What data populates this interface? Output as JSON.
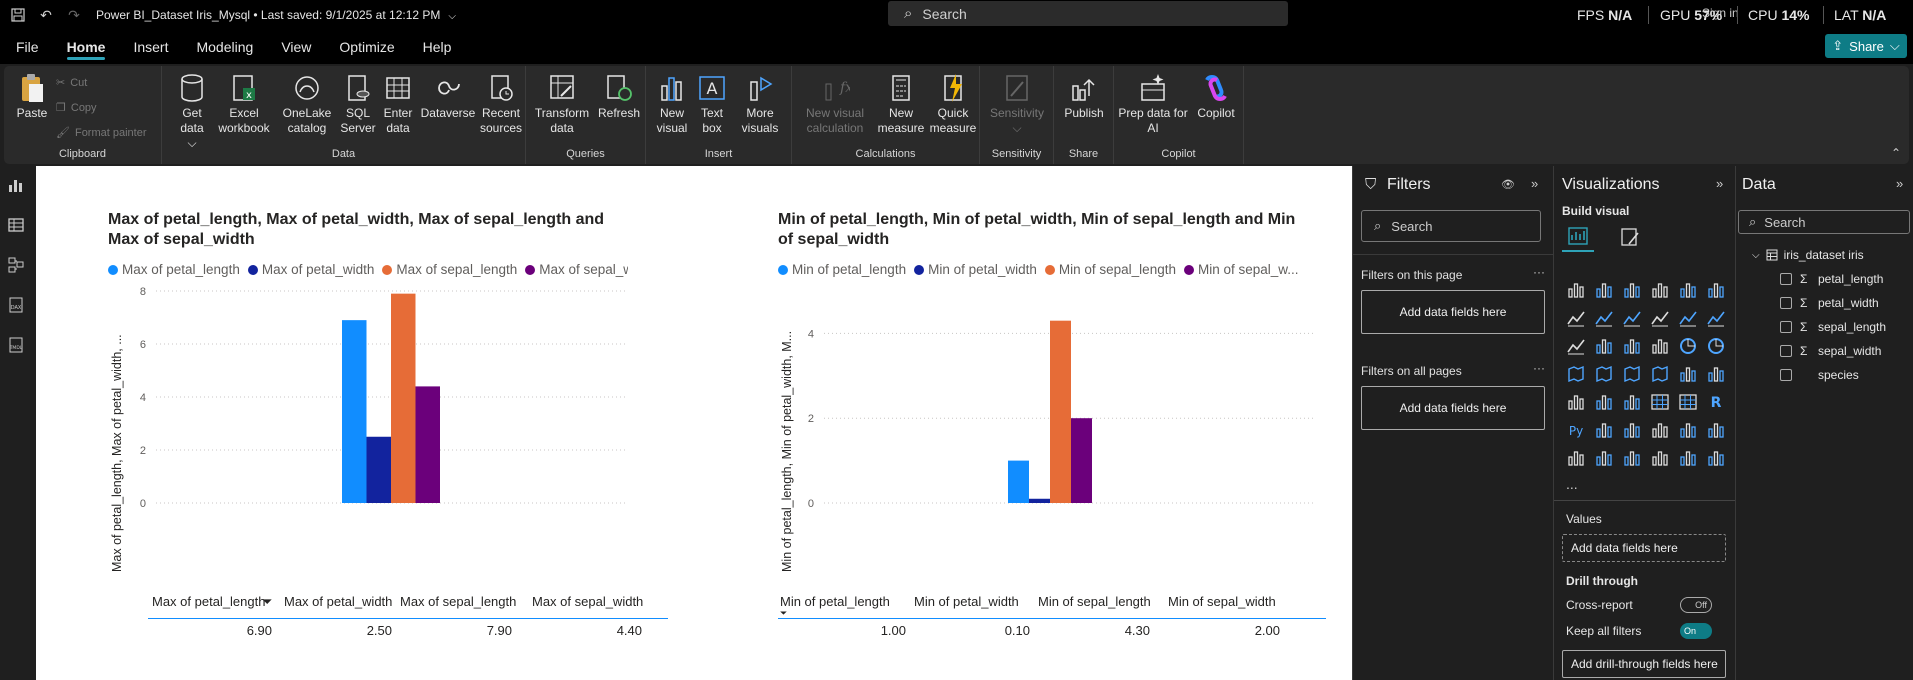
{
  "titlebar": {
    "doc_title": "Power BI_Dataset Iris_Mysql • Last saved: 9/1/2025 at 12:12 PM",
    "search_placeholder": "Search",
    "fps_label": "FPS",
    "fps_value": "N/A",
    "gpu_label": "GPU",
    "gpu_value": "57%",
    "cpu_label": "CPU",
    "cpu_value": "14%",
    "lat_label": "LAT",
    "lat_value": "N/A",
    "signin": "Sign in"
  },
  "menu": {
    "items": [
      "File",
      "Home",
      "Insert",
      "Modeling",
      "View",
      "Optimize",
      "Help"
    ],
    "active": "Home",
    "share": "Share"
  },
  "ribbon": {
    "clipboard": {
      "label": "Clipboard",
      "paste": "Paste",
      "cut": "Cut",
      "copy": "Copy",
      "format_painter": "Format painter"
    },
    "data": {
      "label": "Data",
      "get_data": "Get data",
      "excel": "Excel workbook",
      "onelake": "OneLake catalog",
      "sql": "SQL Server",
      "enter": "Enter data",
      "dataverse": "Dataverse",
      "recent": "Recent sources"
    },
    "queries": {
      "label": "Queries",
      "transform": "Transform data",
      "refresh": "Refresh"
    },
    "insert": {
      "label": "Insert",
      "new_visual": "New visual",
      "text_box": "Text box",
      "more_visuals": "More visuals"
    },
    "calculations": {
      "label": "Calculations",
      "new_visual_calc": "New visual calculation",
      "new_measure": "New measure",
      "quick_measure": "Quick measure"
    },
    "sensitivity": {
      "label": "Sensitivity",
      "sensitivity": "Sensitivity"
    },
    "share": {
      "label": "Share",
      "publish": "Publish"
    },
    "copilot": {
      "label": "Copilot",
      "prep": "Prep data for AI",
      "copilot": "Copilot"
    }
  },
  "colors": {
    "s1": "#118DFF",
    "s2": "#12239E",
    "s3": "#E66C37",
    "s4": "#6B007B",
    "accent": "#0e7c86"
  },
  "chart_data": [
    {
      "type": "bar",
      "title": "Max of petal_length, Max of petal_width, Max of sepal_length and Max of sepal_width",
      "ylabel": "Max of petal_length, Max of petal_width, ...",
      "ylim": [
        0,
        8
      ],
      "yticks": [
        "0",
        "2",
        "4",
        "6",
        "8"
      ],
      "series": [
        {
          "name": "Max of petal_length",
          "values": [
            6.9
          ]
        },
        {
          "name": "Max of petal_width",
          "values": [
            2.5
          ]
        },
        {
          "name": "Max of sepal_length",
          "values": [
            7.9
          ]
        },
        {
          "name": "Max of sepal_width",
          "values": [
            4.4
          ]
        }
      ],
      "table_values": [
        "6.90",
        "2.50",
        "7.90",
        "4.40"
      ]
    },
    {
      "type": "bar",
      "title": "Min of petal_length, Min of petal_width, Min of sepal_length and Min of sepal_width",
      "ylabel": "Min of petal_length, Min of petal_width, M...",
      "ylim": [
        0,
        5
      ],
      "yticks": [
        "0",
        "2",
        "4"
      ],
      "series": [
        {
          "name": "Min of petal_length",
          "values": [
            1.0
          ]
        },
        {
          "name": "Min of petal_width",
          "values": [
            0.1
          ]
        },
        {
          "name": "Min of sepal_length",
          "values": [
            4.3
          ]
        },
        {
          "name": "Min of sepal_width",
          "values": [
            2.0
          ]
        }
      ],
      "legend_last": "Min of sepal_w...",
      "table_values": [
        "1.00",
        "0.10",
        "4.30",
        "2.00"
      ]
    }
  ],
  "filters": {
    "title": "Filters",
    "search": "Search",
    "on_page": "Filters on this page",
    "on_all": "Filters on all pages",
    "add": "Add data fields here"
  },
  "viz": {
    "title": "Visualizations",
    "build": "Build visual",
    "values": "Values",
    "add_values": "Add data fields here",
    "drill": "Drill through",
    "cross_report": "Cross-report",
    "cross_state": "Off",
    "keep_filters": "Keep all filters",
    "keep_state": "On",
    "add_drill": "Add drill-through fields here",
    "more": "..."
  },
  "datapane": {
    "title": "Data",
    "search": "Search",
    "table": "iris_dataset iris",
    "fields": [
      {
        "name": "petal_length",
        "sigma": "Σ"
      },
      {
        "name": "petal_width",
        "sigma": "Σ"
      },
      {
        "name": "sepal_length",
        "sigma": "Σ"
      },
      {
        "name": "sepal_width",
        "sigma": "Σ"
      },
      {
        "name": "species",
        "sigma": ""
      }
    ]
  }
}
